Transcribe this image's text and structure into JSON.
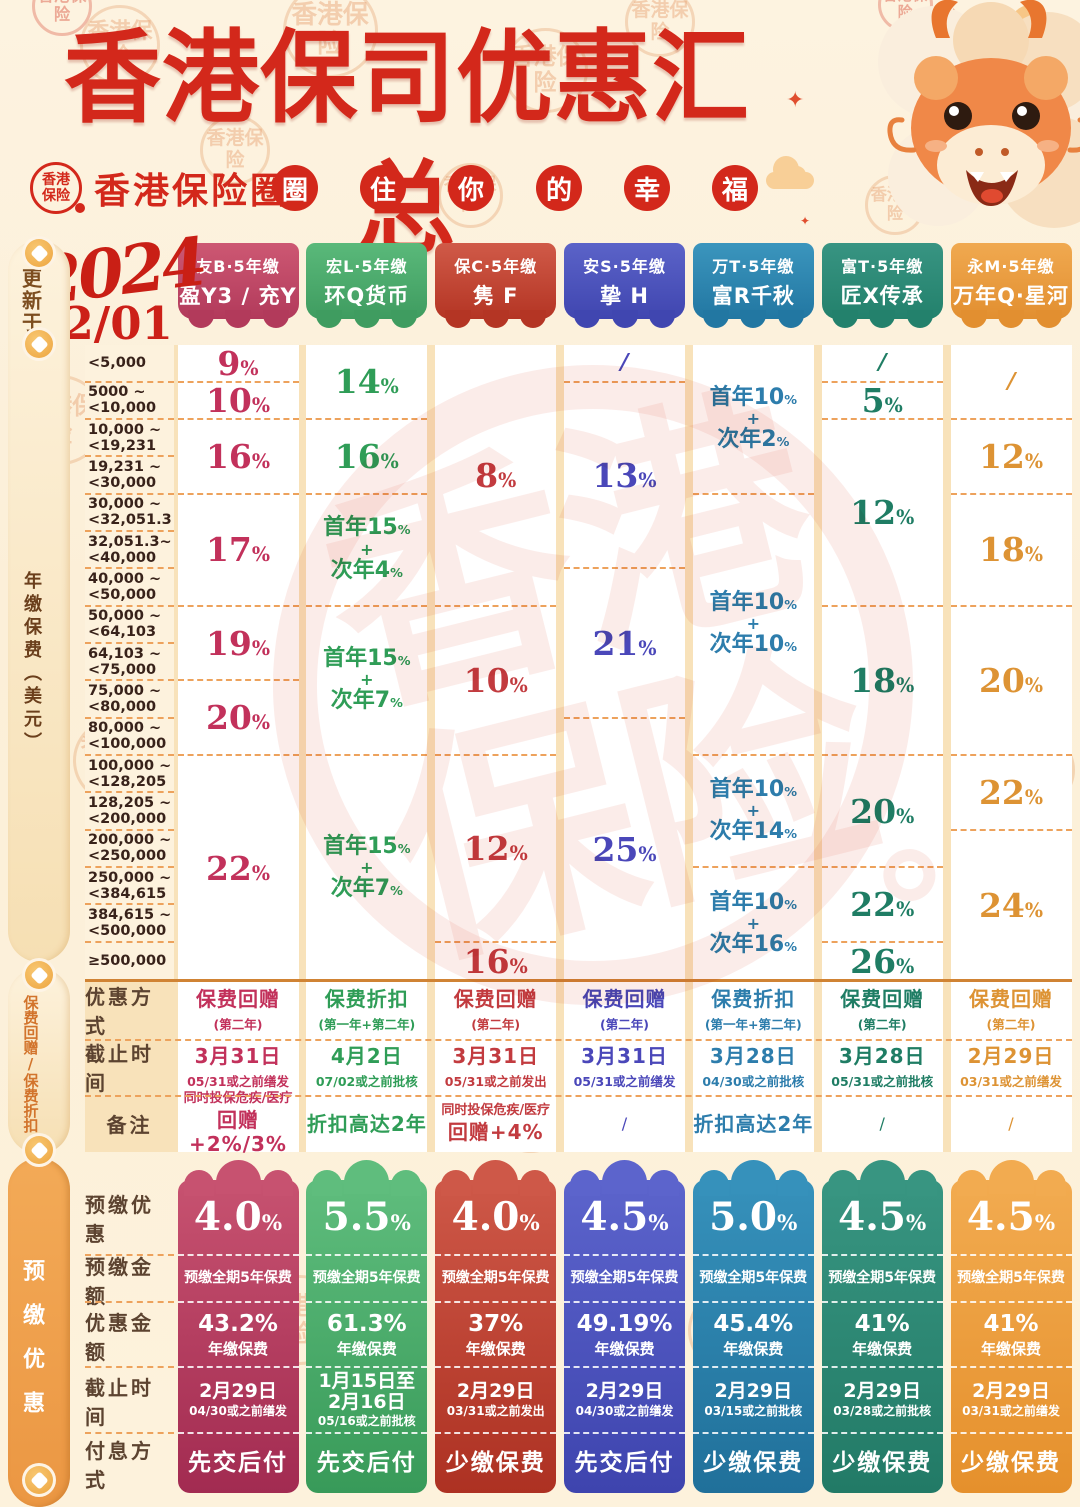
{
  "header": {
    "title": "香港保司优惠汇总",
    "logo_line1": "香港",
    "logo_line2": "保险",
    "brand": "香港保险圈",
    "slogan": [
      "圈",
      "住",
      "你",
      "的",
      "幸",
      "福"
    ],
    "updated_label": "更新于",
    "year": "2024",
    "date": "02/01"
  },
  "sidebar": {
    "annual_premium": "年缴保费（美元）",
    "rebate_section": "保费回赠/保费折扣",
    "prepay_section": "预缴优惠"
  },
  "watermark": {
    "chars": [
      "香",
      "港",
      "保",
      "险"
    ],
    "stamp_text": "香港保险"
  },
  "section_labels": {
    "offer_type": "优惠方式",
    "deadline": "截止时间",
    "note": "备注",
    "prepay_rate": "预缴优惠",
    "prepay_amount": "预缴金额",
    "discount_amount": "优惠金额",
    "prepay_deadline": "截止时间",
    "interest_mode": "付息方式"
  },
  "premium_rows": [
    "<5,000",
    "5000 ~<10,000",
    "10,000 ~<19,231",
    "19,231 ~<30,000",
    "30,000 ~<32,051.3",
    "32,051.3~<40,000",
    "40,000 ~<50,000",
    "50,000 ~<64,103",
    "64,103 ~<75,000",
    "75,000 ~<80,000",
    "80,000 ~<100,000",
    "100,000 ~<128,205",
    "128,205 ~<200,000",
    "200,000 ~<250,000",
    "250,000 ~<384,615",
    "384,615 ~<500,000",
    "≥500,000"
  ],
  "columns": [
    {
      "company": "友B·5年缴",
      "product": "盈Y3 / 充Y",
      "color": "#c2315b",
      "badge_top": "#cd5873",
      "badge_bottom": "#b23a5b",
      "card_top": "#c75270",
      "card_bottom": "#a22b51",
      "cells": [
        {
          "rows": [
            1,
            1
          ],
          "pct": "9%"
        },
        {
          "rows": [
            2,
            2
          ],
          "pct": "10%"
        },
        {
          "rows": [
            3,
            4
          ],
          "pct": "16%"
        },
        {
          "rows": [
            5,
            7
          ],
          "pct": "17%"
        },
        {
          "rows": [
            8,
            9
          ],
          "pct": "19%"
        },
        {
          "rows": [
            10,
            11
          ],
          "pct": "20%"
        },
        {
          "rows": [
            12,
            17
          ],
          "pct": "22%"
        }
      ],
      "offer_type": {
        "main": "保费回赠",
        "sub": "(第二年)"
      },
      "deadline": {
        "main": "3月31日",
        "sub": "05/31或之前缮发"
      },
      "note": {
        "small": "同时投保危疾/医疗",
        "big": "回赠+2%/3%"
      },
      "prepay": {
        "rate": "4.0%",
        "amount": "预缴全期5年保费",
        "discount": "43.2%",
        "discount_sub": "年缴保费",
        "deadline_main": [
          "2月29日"
        ],
        "deadline_sub": "04/30或之前缮发",
        "interest": "先交后付"
      }
    },
    {
      "company": "宏L·5年缴",
      "product": "环Q货币",
      "color": "#2f9d57",
      "badge_top": "#5ab97a",
      "badge_bottom": "#3f9c60",
      "card_top": "#5fbd7d",
      "card_bottom": "#389a59",
      "cells": [
        {
          "rows": [
            1,
            2
          ],
          "pct": "14%"
        },
        {
          "rows": [
            3,
            4
          ],
          "pct": "16%"
        },
        {
          "rows": [
            5,
            7
          ],
          "lines": [
            "首年15%",
            "+",
            "次年4%"
          ]
        },
        {
          "rows": [
            8,
            11
          ],
          "lines": [
            "首年15%",
            "+",
            "次年7%"
          ]
        },
        {
          "rows": [
            12,
            17
          ],
          "lines": [
            "首年15%",
            "+",
            "次年7%"
          ]
        }
      ],
      "offer_type": {
        "main": "保费折扣",
        "sub": "(第一年+第二年)"
      },
      "deadline": {
        "main": "4月2日",
        "sub": "07/02或之前批核"
      },
      "note": {
        "big": "折扣高达2年"
      },
      "prepay": {
        "rate": "5.5%",
        "amount": "预缴全期5年保费",
        "discount": "61.3%",
        "discount_sub": "年缴保费",
        "deadline_main": [
          "1月15日至",
          "2月16日"
        ],
        "deadline_sub": "05/16或之前批核",
        "interest": "先交后付"
      }
    },
    {
      "company": "保C·5年缴",
      "product": "隽 F",
      "color": "#c23b3f",
      "badge_top": "#d05a48",
      "badge_bottom": "#b43524",
      "card_top": "#ce5848",
      "card_bottom": "#ad3122",
      "cells": [
        {
          "rows": [
            1,
            7
          ],
          "pct": "8%"
        },
        {
          "rows": [
            8,
            11
          ],
          "pct": "10%"
        },
        {
          "rows": [
            12,
            16
          ],
          "pct": "12%"
        },
        {
          "rows": [
            17,
            17
          ],
          "pct": "16%"
        }
      ],
      "offer_type": {
        "main": "保费回赠",
        "sub": "(第二年)"
      },
      "deadline": {
        "main": "3月31日",
        "sub": "05/31或之前发出"
      },
      "note": {
        "small": "同时投保危疾/医疗",
        "big": "回赠+4%"
      },
      "prepay": {
        "rate": "4.0%",
        "amount": "预缴全期5年保费",
        "discount": "37%",
        "discount_sub": "年缴保费",
        "deadline_main": [
          "2月29日"
        ],
        "deadline_sub": "03/31或之前发出",
        "interest": "少缴保费"
      }
    },
    {
      "company": "安S·5年缴",
      "product": "挚 H",
      "color": "#4a47b9",
      "badge_top": "#5b63c8",
      "badge_bottom": "#4046b0",
      "card_top": "#5c64cc",
      "card_bottom": "#3e44ae",
      "cells": [
        {
          "rows": [
            1,
            1
          ],
          "slash": true
        },
        {
          "rows": [
            2,
            6
          ],
          "pct": "13%"
        },
        {
          "rows": [
            7,
            10
          ],
          "pct": "21%"
        },
        {
          "rows": [
            11,
            17
          ],
          "pct": "25%"
        }
      ],
      "offer_type": {
        "main": "保费回赠",
        "sub": "(第二年)"
      },
      "deadline": {
        "main": "3月31日",
        "sub": "05/31或之前缮发"
      },
      "note": {
        "slash": true
      },
      "prepay": {
        "rate": "4.5%",
        "amount": "预缴全期5年保费",
        "discount": "49.19%",
        "discount_sub": "年缴保费",
        "deadline_main": [
          "2月29日"
        ],
        "deadline_sub": "04/30或之前缮发",
        "interest": "先交后付"
      }
    },
    {
      "company": "万T·5年缴",
      "product": "富R千秋",
      "color": "#2d7dac",
      "badge_top": "#3b95bd",
      "badge_bottom": "#2277a2",
      "card_top": "#3691bb",
      "card_bottom": "#20709a",
      "cells": [
        {
          "rows": [
            1,
            4
          ],
          "lines": [
            "首年10%",
            "+",
            "次年2%"
          ]
        },
        {
          "rows": [
            5,
            11
          ],
          "lines": [
            "首年10%",
            "+",
            "次年10%"
          ]
        },
        {
          "rows": [
            12,
            14
          ],
          "lines": [
            "首年10%",
            "+",
            "次年14%"
          ]
        },
        {
          "rows": [
            15,
            17
          ],
          "lines": [
            "首年10%",
            "+",
            "次年16%"
          ]
        }
      ],
      "offer_type": {
        "main": "保费折扣",
        "sub": "(第一年+第二年)"
      },
      "deadline": {
        "main": "3月28日",
        "sub": "04/30或之前批核"
      },
      "note": {
        "big": "折扣高达2年"
      },
      "prepay": {
        "rate": "5.0%",
        "amount": "预缴全期5年保费",
        "discount": "45.4%",
        "discount_sub": "年缴保费",
        "deadline_main": [
          "2月29日"
        ],
        "deadline_sub": "03/15或之前批核",
        "interest": "少缴保费"
      }
    },
    {
      "company": "富T·5年缴",
      "product": "匠X传承",
      "color": "#1f7d64",
      "badge_top": "#389482",
      "badge_bottom": "#23816c",
      "card_top": "#389581",
      "card_bottom": "#227a66",
      "cells": [
        {
          "rows": [
            1,
            1
          ],
          "slash": true
        },
        {
          "rows": [
            2,
            2
          ],
          "pct": "5%"
        },
        {
          "rows": [
            3,
            7
          ],
          "pct": "12%"
        },
        {
          "rows": [
            8,
            11
          ],
          "pct": "18%"
        },
        {
          "rows": [
            12,
            14
          ],
          "pct": "20%"
        },
        {
          "rows": [
            15,
            16
          ],
          "pct": "22%"
        },
        {
          "rows": [
            17,
            17
          ],
          "pct": "26%"
        }
      ],
      "offer_type": {
        "main": "保费回赠",
        "sub": "(第二年)"
      },
      "deadline": {
        "main": "3月28日",
        "sub": "05/31或之前批核"
      },
      "note": {
        "slash": true
      },
      "prepay": {
        "rate": "4.5%",
        "amount": "预缴全期5年保费",
        "discount": "41%",
        "discount_sub": "年缴保费",
        "deadline_main": [
          "2月29日"
        ],
        "deadline_sub": "03/28或之前批核",
        "interest": "少缴保费"
      }
    },
    {
      "company": "永M·5年缴",
      "product": "万年Q·星河",
      "color": "#dd9334",
      "badge_top": "#f0a950",
      "badge_bottom": "#e28f30",
      "card_top": "#f2ab50",
      "card_bottom": "#e5902c",
      "cells": [
        {
          "rows": [
            1,
            2
          ],
          "slash": true
        },
        {
          "rows": [
            3,
            4
          ],
          "pct": "12%"
        },
        {
          "rows": [
            5,
            7
          ],
          "pct": "18%"
        },
        {
          "rows": [
            8,
            11
          ],
          "pct": "20%"
        },
        {
          "rows": [
            12,
            13
          ],
          "pct": "22%"
        },
        {
          "rows": [
            14,
            17
          ],
          "pct": "24%"
        }
      ],
      "offer_type": {
        "main": "保费回赠",
        "sub": "(第二年)"
      },
      "deadline": {
        "main": "2月29日",
        "sub": "03/31或之前缮发"
      },
      "note": {
        "slash": true
      },
      "prepay": {
        "rate": "4.5%",
        "amount": "预缴全期5年保费",
        "discount": "41%",
        "discount_sub": "年缴保费",
        "deadline_main": [
          "2月29日"
        ],
        "deadline_sub": "03/31或之前缮发",
        "interest": "少缴保费"
      }
    }
  ]
}
